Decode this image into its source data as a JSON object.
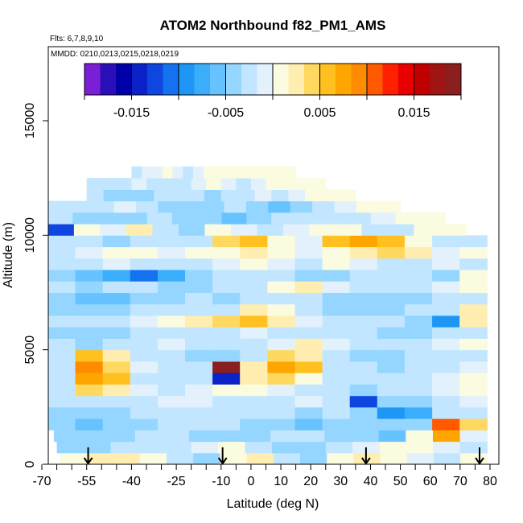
{
  "chart_data": {
    "type": "heatmap",
    "title": "ATOM2 Northbound f82_PM1_AMS",
    "subtitle_flights": "Flts: 6,7,8,9,10",
    "subtitle_dates": "MMDD: 0210,0213,0215,0218,0219",
    "xlabel": "Latitude (deg N)",
    "ylabel": "Altitude (m)",
    "xlim": [
      -70,
      80
    ],
    "ylim": [
      0,
      17000
    ],
    "x_tick_labels": [
      "-70",
      "-55",
      "-40",
      "-25",
      "-10",
      "0",
      "10",
      "20",
      "30",
      "40",
      "50",
      "60",
      "70",
      "80"
    ],
    "x_tick_values": [
      -70,
      -55,
      -40,
      -25,
      -10,
      0,
      10,
      20,
      30,
      40,
      50,
      60,
      70,
      80
    ],
    "y_tick_labels": [
      "0",
      "5000",
      "10000",
      "15000"
    ],
    "y_tick_values": [
      0,
      5000,
      10000,
      15000
    ],
    "colorbar": {
      "range": [
        -0.02,
        0.02
      ],
      "tick_labels": [
        "-0.015",
        "-0.005",
        "0.005",
        "0.015"
      ],
      "tick_values": [
        -0.015,
        -0.005,
        0.005,
        0.015
      ],
      "colors": [
        "#7a1fd6",
        "#2a0fb8",
        "#0000a8",
        "#0a22c8",
        "#0f46e0",
        "#1472ee",
        "#1e96f5",
        "#3aaefb",
        "#66c3ff",
        "#94d6ff",
        "#c2e6ff",
        "#e2f1fb",
        "#fbfbe0",
        "#ffeeb0",
        "#ffd860",
        "#ffc020",
        "#ffa500",
        "#ff8c00",
        "#ff5a00",
        "#ff2000",
        "#e80000",
        "#c00000",
        "#a01414",
        "#8b1e1e"
      ]
    },
    "profile_latitudes": [
      -54.5,
      -9.5,
      38.5,
      76.5
    ],
    "profile_arrow_icon": "down-arrow-icon",
    "curtain": {
      "lat_range": [
        -69,
        79
      ],
      "alt_levels": [
        0,
        500,
        1000,
        1500,
        2000,
        2500,
        3000,
        3500,
        4000,
        4500,
        5000,
        5500,
        6000,
        6500,
        7000,
        7500,
        8000,
        8500,
        9000,
        9500,
        10000,
        10500,
        11000,
        11500,
        12000,
        12500
      ],
      "row_lat_max": [
        79,
        79,
        79,
        79,
        79,
        79,
        79,
        79,
        79,
        79,
        79,
        79,
        79,
        79,
        79,
        79,
        79,
        79,
        79,
        79,
        72,
        65,
        50,
        35,
        25,
        15
      ],
      "row_lat_min": [
        -64,
        -65,
        -66,
        -68,
        -68,
        -68,
        -68,
        -68,
        -68,
        -68,
        -68,
        -68,
        -68,
        -68,
        -68,
        -68,
        -68,
        -68,
        -68,
        -68,
        -68,
        -68,
        -68,
        -55,
        -55,
        -40
      ],
      "values": [
        [
          0.001,
          0.003,
          0.002,
          0.0,
          -0.003,
          -0.004,
          0.001,
          0.002,
          -0.002,
          -0.004,
          0.0,
          0.002,
          0.001,
          -0.001,
          -0.002,
          0.0
        ],
        [
          -0.005,
          -0.004,
          -0.003,
          -0.003,
          -0.002,
          -0.001,
          0.0,
          -0.002,
          -0.004,
          -0.005,
          -0.003,
          -0.001,
          0.0,
          0.0,
          -0.001,
          -0.002
        ],
        [
          -0.004,
          -0.005,
          -0.004,
          -0.003,
          -0.003,
          -0.004,
          -0.005,
          -0.004,
          -0.003,
          -0.002,
          -0.004,
          -0.005,
          -0.006,
          0.001,
          0.008,
          -0.001
        ],
        [
          -0.005,
          -0.006,
          -0.005,
          -0.004,
          -0.003,
          -0.002,
          -0.003,
          -0.004,
          -0.005,
          -0.006,
          -0.005,
          -0.004,
          -0.005,
          -0.004,
          0.01,
          0.004
        ],
        [
          -0.004,
          -0.005,
          -0.004,
          -0.003,
          -0.003,
          -0.002,
          -0.003,
          -0.002,
          -0.003,
          -0.004,
          -0.003,
          -0.005,
          -0.009,
          -0.007,
          -0.003,
          -0.002
        ],
        [
          -0.003,
          -0.002,
          -0.003,
          -0.002,
          -0.001,
          -0.001,
          -0.002,
          -0.003,
          -0.002,
          -0.001,
          -0.002,
          -0.013,
          -0.004,
          -0.004,
          -0.002,
          -0.001
        ],
        [
          -0.002,
          0.004,
          0.002,
          -0.001,
          -0.002,
          -0.001,
          0.0,
          0.001,
          -0.001,
          -0.003,
          -0.002,
          -0.004,
          -0.003,
          -0.002,
          -0.001,
          0.0
        ],
        [
          -0.003,
          0.007,
          0.005,
          -0.002,
          -0.003,
          -0.003,
          -0.014,
          0.002,
          0.004,
          0.0,
          -0.002,
          -0.003,
          -0.002,
          -0.002,
          -0.001,
          0.0
        ],
        [
          -0.002,
          0.009,
          0.004,
          -0.001,
          -0.002,
          -0.002,
          0.02,
          0.003,
          0.008,
          0.005,
          -0.002,
          -0.003,
          -0.004,
          -0.003,
          -0.002,
          -0.001
        ],
        [
          -0.003,
          0.005,
          0.002,
          -0.002,
          -0.003,
          -0.004,
          -0.005,
          -0.003,
          0.004,
          0.002,
          -0.003,
          -0.005,
          -0.004,
          -0.003,
          -0.003,
          -0.002
        ],
        [
          -0.002,
          -0.004,
          -0.003,
          -0.002,
          -0.001,
          -0.002,
          -0.003,
          -0.002,
          -0.001,
          0.002,
          -0.001,
          -0.002,
          -0.003,
          -0.002,
          -0.001,
          0.0
        ],
        [
          -0.004,
          -0.005,
          -0.004,
          -0.003,
          -0.002,
          -0.003,
          -0.002,
          -0.001,
          -0.002,
          -0.003,
          -0.002,
          -0.003,
          -0.004,
          -0.005,
          -0.003,
          -0.002
        ],
        [
          -0.002,
          -0.003,
          -0.002,
          -0.001,
          0.0,
          0.002,
          0.004,
          0.006,
          0.003,
          -0.001,
          -0.002,
          -0.003,
          -0.002,
          -0.004,
          -0.009,
          0.003
        ],
        [
          -0.004,
          -0.005,
          -0.004,
          -0.003,
          -0.002,
          -0.003,
          -0.002,
          0.002,
          0.0,
          -0.002,
          -0.004,
          -0.005,
          -0.004,
          -0.003,
          -0.002,
          0.002
        ],
        [
          -0.005,
          -0.006,
          -0.006,
          -0.005,
          -0.004,
          -0.003,
          -0.004,
          -0.003,
          -0.002,
          -0.003,
          -0.004,
          -0.005,
          -0.004,
          -0.004,
          -0.003,
          -0.002
        ],
        [
          -0.003,
          -0.004,
          -0.003,
          -0.002,
          -0.004,
          -0.005,
          -0.003,
          -0.002,
          0.001,
          0.002,
          -0.001,
          -0.002,
          -0.003,
          -0.002,
          -0.001,
          0.001
        ],
        [
          -0.004,
          -0.006,
          -0.008,
          -0.011,
          -0.007,
          -0.004,
          -0.003,
          -0.002,
          -0.003,
          -0.005,
          -0.004,
          -0.003,
          -0.002,
          -0.003,
          -0.004,
          0.001
        ],
        [
          -0.003,
          -0.002,
          -0.001,
          -0.002,
          -0.003,
          -0.002,
          -0.001,
          0.0,
          -0.001,
          -0.002,
          0.001,
          -0.001,
          -0.002,
          -0.002,
          -0.001,
          -0.003
        ],
        [
          -0.002,
          -0.001,
          0.001,
          0.0,
          -0.001,
          0.0,
          0.001,
          0.002,
          0.0,
          -0.001,
          0.0,
          0.003,
          0.004,
          0.002,
          -0.001,
          0.0
        ],
        [
          -0.003,
          -0.002,
          -0.004,
          -0.003,
          -0.002,
          -0.003,
          0.004,
          0.005,
          0.001,
          -0.001,
          0.005,
          0.007,
          0.006,
          0.0,
          -0.002,
          -0.002
        ],
        [
          -0.012,
          0.0,
          -0.001,
          0.003,
          -0.002,
          -0.004,
          0.0,
          -0.001,
          -0.002,
          -0.001,
          0.0,
          0.0,
          -0.002,
          -0.003,
          0.0,
          0.0
        ],
        [
          -0.003,
          -0.004,
          -0.005,
          -0.004,
          -0.003,
          -0.004,
          -0.005,
          -0.006,
          -0.004,
          -0.003,
          -0.002,
          -0.003,
          -0.002,
          -0.001,
          0.0,
          0.0
        ],
        [
          -0.002,
          -0.003,
          -0.002,
          -0.001,
          -0.003,
          -0.004,
          -0.005,
          -0.004,
          -0.003,
          -0.005,
          -0.006,
          -0.004,
          -0.002,
          -0.001,
          0.0,
          0.0
        ],
        [
          -0.003,
          -0.004,
          -0.005,
          -0.004,
          -0.003,
          -0.002,
          -0.003,
          -0.004,
          -0.003,
          -0.002,
          -0.001,
          -0.002,
          -0.001,
          0.0,
          0.0,
          0.0
        ],
        [
          -0.002,
          -0.003,
          -0.002,
          -0.001,
          -0.002,
          -0.003,
          -0.002,
          -0.001,
          0.0,
          -0.001,
          -0.002,
          -0.001,
          0.0,
          0.0,
          0.0,
          0.0
        ],
        [
          -0.002,
          -0.001,
          -0.001,
          0.0,
          -0.001,
          -0.002,
          -0.001,
          0.0,
          0.0,
          0.0,
          0.0,
          0.0,
          0.0,
          0.0,
          0.0,
          0.0
        ]
      ]
    },
    "grid": false,
    "colorbar_position": "top inside plot area"
  }
}
